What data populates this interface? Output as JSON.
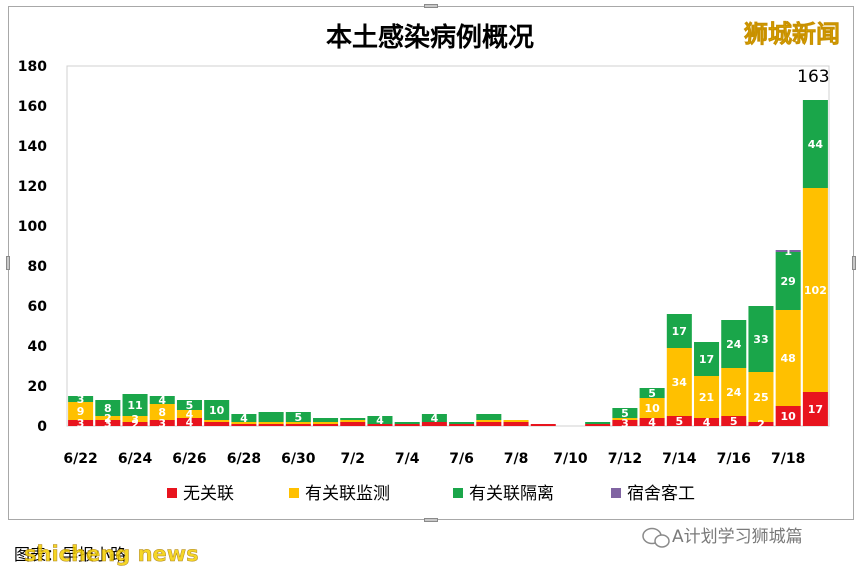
{
  "chart_data": {
    "type": "bar",
    "stacked": true,
    "title": "本土感染病例概况",
    "brand": "狮城新闻",
    "ylim": [
      0,
      180
    ],
    "yticks": [
      0,
      20,
      40,
      60,
      80,
      100,
      120,
      140,
      160,
      180
    ],
    "grid": false,
    "legend_position": "bottom",
    "xtick_labels": [
      "6/22",
      "6/24",
      "6/26",
      "6/28",
      "6/30",
      "7/2",
      "7/4",
      "7/6",
      "7/8",
      "7/10",
      "7/12",
      "7/14",
      "7/16",
      "7/18"
    ],
    "categories": [
      "6/22",
      "6/23",
      "6/24",
      "6/25",
      "6/26",
      "6/27",
      "6/28",
      "6/29",
      "6/30",
      "7/1",
      "7/2",
      "7/3",
      "7/4",
      "7/5",
      "7/6",
      "7/7",
      "7/8",
      "7/9",
      "7/10",
      "7/11",
      "7/12",
      "7/13",
      "7/14",
      "7/15",
      "7/16",
      "7/17",
      "7/18",
      "7/19"
    ],
    "series": [
      {
        "name": "无关联",
        "color": "#e8141e",
        "values": [
          3,
          3,
          2,
          3,
          4,
          2,
          1,
          1,
          1,
          1,
          2,
          1,
          1,
          2,
          1,
          2,
          2,
          1,
          0,
          1,
          3,
          4,
          5,
          4,
          5,
          2,
          10,
          17
        ],
        "labels": [
          "3",
          "3",
          "2",
          "3",
          "4",
          "",
          "",
          "",
          "",
          "",
          "",
          "",
          "",
          "",
          "",
          "",
          "",
          "",
          "",
          "",
          "3",
          "4",
          "5",
          "4",
          "5",
          "2",
          "10",
          "17"
        ]
      },
      {
        "name": "有关联监测",
        "color": "#ffc000",
        "values": [
          9,
          2,
          3,
          8,
          4,
          1,
          1,
          1,
          1,
          1,
          1,
          0,
          0,
          0,
          0,
          1,
          1,
          0,
          0,
          0,
          1,
          10,
          34,
          21,
          24,
          25,
          48,
          102
        ],
        "labels": [
          "9",
          "2",
          "3",
          "8",
          "4",
          "",
          "",
          "",
          "",
          "",
          "",
          "",
          "",
          "",
          "",
          "",
          "",
          "",
          "",
          "",
          "",
          "10",
          "34",
          "21",
          "24",
          "25",
          "48",
          "102"
        ]
      },
      {
        "name": "有关联隔离",
        "color": "#1aa64a",
        "values": [
          3,
          8,
          11,
          4,
          5,
          10,
          4,
          5,
          5,
          2,
          1,
          4,
          1,
          4,
          1,
          3,
          0,
          0,
          0,
          1,
          5,
          5,
          17,
          17,
          24,
          33,
          29,
          44
        ],
        "labels": [
          "3",
          "8",
          "11",
          "4",
          "5",
          "10",
          "4",
          "",
          "5",
          "",
          "",
          "4",
          "",
          "4",
          "",
          "",
          "",
          "",
          "",
          "",
          "5",
          "5",
          "17",
          "17",
          "24",
          "33",
          "29",
          "44"
        ]
      },
      {
        "name": "宿舍客工",
        "color": "#8064a2",
        "values": [
          0,
          0,
          0,
          0,
          0,
          0,
          0,
          0,
          0,
          0,
          0,
          0,
          0,
          0,
          0,
          0,
          0,
          0,
          0,
          0,
          0,
          0,
          0,
          0,
          0,
          0,
          1,
          0
        ],
        "labels": [
          "",
          "",
          "",
          "",
          "",
          "",
          "",
          "",
          "",
          "",
          "",
          "",
          "",
          "",
          "",
          "",
          "",
          "",
          "",
          "",
          "",
          "",
          "",
          "",
          "",
          "",
          "1",
          ""
        ]
      }
    ],
    "total_labels": [
      {
        "category": "7/19",
        "value": "163"
      }
    ]
  },
  "caption": {
    "text": "图表：早报小路",
    "overlay": "shicheng news"
  },
  "watermark": {
    "text": "A计划学习狮城篇"
  }
}
